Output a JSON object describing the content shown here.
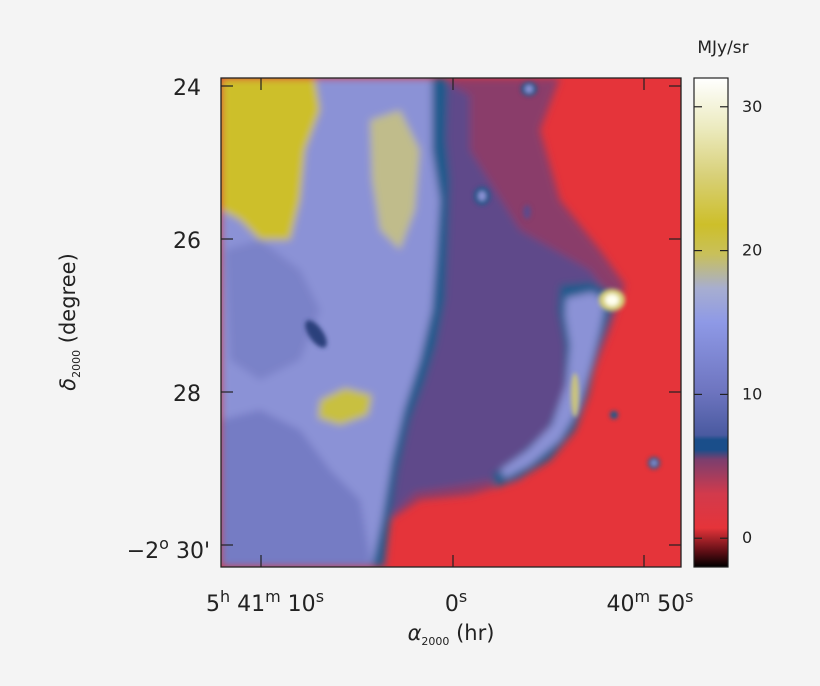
{
  "chart_data": {
    "type": "heatmap",
    "colorbar_label": "MJy/sr",
    "colorbar_ticks": [
      "0",
      "10",
      "20",
      "30"
    ],
    "colorbar_values": [
      0,
      10,
      20,
      30
    ],
    "colorbar_range": [
      -2,
      32
    ],
    "x_axis": {
      "label_symbol": "α",
      "label_sub": "2000",
      "label_unit": "(hr)",
      "ticks": [
        {
          "base": "5",
          "sup": "h",
          "rest": " 41",
          "sup2": "m",
          "rest2": " 10",
          "sup3": "s"
        },
        {
          "base": "0",
          "sup": "s"
        },
        {
          "base": "40",
          "sup": "m",
          "rest": " 50",
          "sup2": "s"
        }
      ]
    },
    "y_axis": {
      "label_symbol": "δ",
      "label_sub": "2000",
      "label_unit": "(degree)",
      "ticks": [
        "24",
        "26",
        "28"
      ],
      "last_tick": {
        "base": "−2",
        "sup": "o",
        "rest": " 30'"
      }
    },
    "colors": {
      "background_red": "#e5343a",
      "deep_blue": "#1f5a8c",
      "dark_purple": "#5a4a86",
      "lavender": "#8b92d6",
      "yellow": "#cdbf2a",
      "peak_white": "#fffff0"
    }
  }
}
